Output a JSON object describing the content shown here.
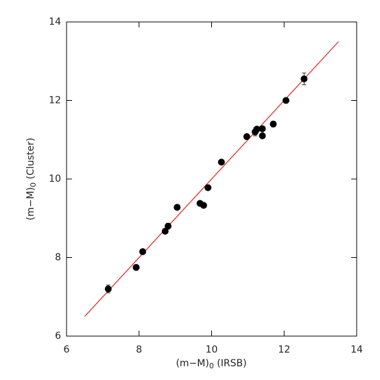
{
  "chart_data": {
    "type": "scatter",
    "x_label": {
      "main": "(m−M)",
      "sub": "0",
      "rest": " (IRSB)"
    },
    "y_label": {
      "main": "(m−M)",
      "sub": "0",
      "rest": " (Cluster)"
    },
    "xlim": [
      6,
      14
    ],
    "ylim": [
      6,
      14
    ],
    "xticks": [
      6,
      8,
      10,
      12,
      14
    ],
    "yticks": [
      6,
      8,
      10,
      12,
      14
    ],
    "series": [
      {
        "color": "#000000",
        "x": [
          7.15,
          7.92,
          8.1,
          8.72,
          8.8,
          9.05,
          9.68,
          9.78,
          9.9,
          10.27,
          10.97,
          11.2,
          11.25,
          11.4,
          11.4,
          11.7,
          12.05,
          12.55
        ],
        "y": [
          7.2,
          7.75,
          8.15,
          8.67,
          8.8,
          9.28,
          9.38,
          9.33,
          9.78,
          10.43,
          11.08,
          11.2,
          11.27,
          11.28,
          11.1,
          11.4,
          12.0,
          12.55
        ],
        "yerr": [
          0.1,
          0.05,
          0.05,
          0.05,
          0.07,
          0.05,
          0.05,
          0.05,
          0.05,
          0.05,
          0.05,
          0.1,
          0.05,
          0.05,
          0.05,
          0.07,
          0.05,
          0.15
        ]
      }
    ],
    "line": {
      "color": "#e02020",
      "x": [
        6.5,
        13.5
      ],
      "y": [
        6.5,
        13.5
      ]
    }
  }
}
